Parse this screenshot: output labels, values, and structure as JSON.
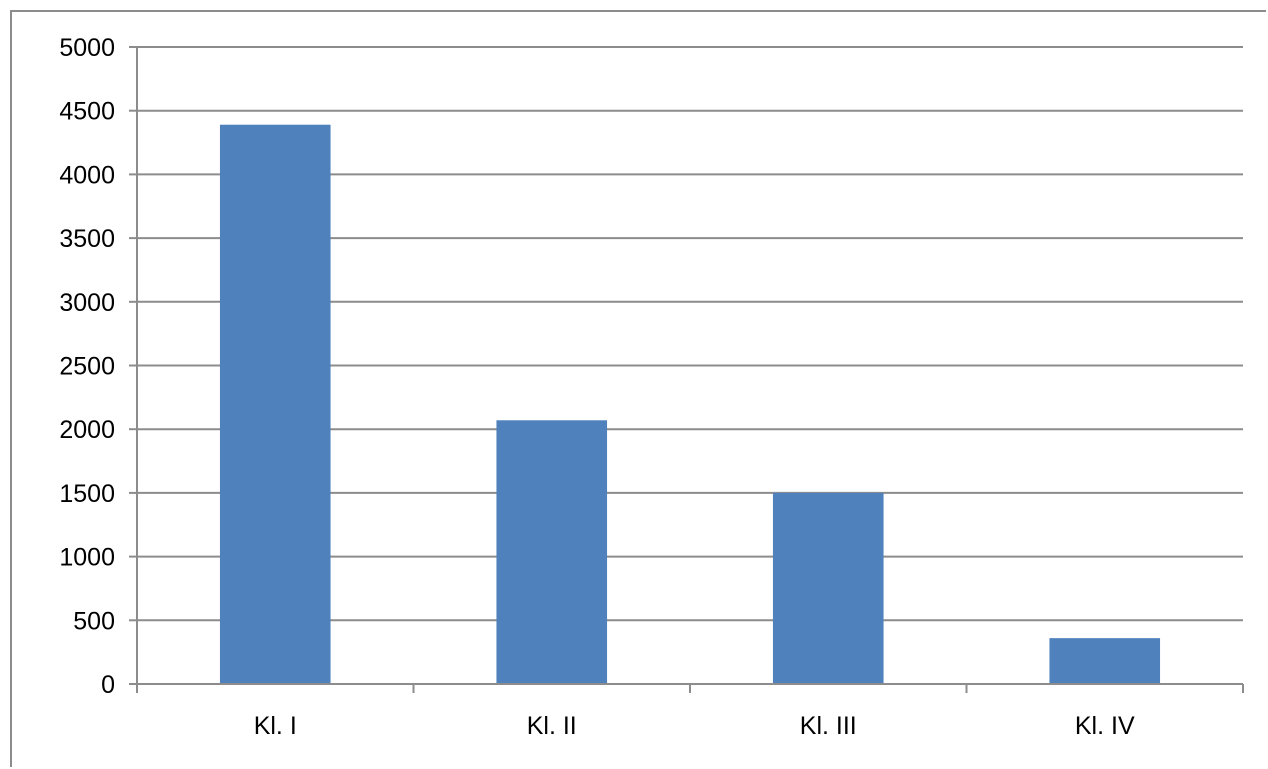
{
  "colors": {
    "bar": "#4f81bd",
    "grid": "#8c8c8c",
    "axis": "#8c8c8c",
    "background": "#ffffff"
  },
  "chart_data": {
    "type": "bar",
    "categories": [
      "Kl. I",
      "Kl. II",
      "Kl. III",
      "Kl. IV"
    ],
    "values": [
      4390,
      2070,
      1500,
      360
    ],
    "title": "",
    "xlabel": "",
    "ylabel": "",
    "ylim": [
      0,
      5000
    ],
    "yticks": [
      "0",
      "500",
      "1000",
      "1500",
      "2000",
      "2500",
      "3000",
      "3500",
      "4000",
      "4500",
      "5000"
    ],
    "grid": true,
    "legend": "none"
  }
}
